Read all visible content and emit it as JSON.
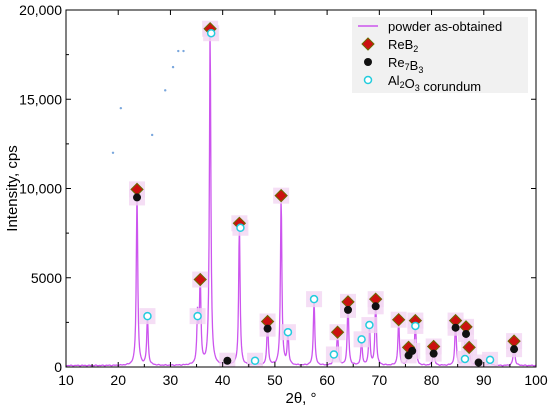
{
  "chart_data": {
    "type": "line",
    "title": "",
    "xlabel": "2θ, °",
    "ylabel": "Intensity, cps",
    "xlim": [
      10,
      100
    ],
    "ylim": [
      0,
      20000
    ],
    "x_ticks": [
      10,
      20,
      30,
      40,
      50,
      60,
      70,
      80,
      90,
      100
    ],
    "y_ticks": [
      0,
      5000,
      10000,
      15000,
      20000
    ],
    "y_tick_labels": [
      "0",
      "5000",
      "10,000",
      "15,000",
      "20,000"
    ],
    "grid": false,
    "legend_position": "top-right",
    "legend": [
      {
        "label": "powder as-obtained",
        "marker": "line",
        "color": "#cc55ee"
      },
      {
        "label_main": "ReB",
        "label_sub": "2",
        "label_tail": "",
        "marker": "diamond",
        "color": "#cc1111"
      },
      {
        "label_main": "Re",
        "label_sub": "7",
        "label_tail": "B",
        "label_sub2": "3",
        "marker": "circle",
        "color": "#111111"
      },
      {
        "label_main": "Al",
        "label_sub": "2",
        "label_tail": "O",
        "label_sub2": "3",
        "label_end": " corundum",
        "marker": "open-circle",
        "color": "#22ccdd"
      }
    ],
    "pattern": {
      "name": "powder as-obtained",
      "color": "#cc55ee",
      "baseline": 80,
      "peaks": [
        {
          "x": 23.6,
          "y": 9900
        },
        {
          "x": 25.6,
          "y": 2800
        },
        {
          "x": 35.2,
          "y": 2800
        },
        {
          "x": 35.7,
          "y": 4900
        },
        {
          "x": 37.6,
          "y": 19000
        },
        {
          "x": 40.9,
          "y": 330
        },
        {
          "x": 43.2,
          "y": 8000
        },
        {
          "x": 46.2,
          "y": 330
        },
        {
          "x": 48.6,
          "y": 2500
        },
        {
          "x": 51.2,
          "y": 9600
        },
        {
          "x": 52.5,
          "y": 1900
        },
        {
          "x": 57.5,
          "y": 3750
        },
        {
          "x": 61.3,
          "y": 700
        },
        {
          "x": 62.0,
          "y": 1900
        },
        {
          "x": 64.0,
          "y": 3600
        },
        {
          "x": 66.6,
          "y": 1500
        },
        {
          "x": 68.1,
          "y": 2300
        },
        {
          "x": 69.3,
          "y": 3750
        },
        {
          "x": 73.7,
          "y": 2600
        },
        {
          "x": 75.6,
          "y": 1100
        },
        {
          "x": 76.3,
          "y": 1000
        },
        {
          "x": 76.9,
          "y": 2550
        },
        {
          "x": 80.4,
          "y": 1100
        },
        {
          "x": 84.6,
          "y": 2550
        },
        {
          "x": 86.4,
          "y": 450
        },
        {
          "x": 86.6,
          "y": 2200
        },
        {
          "x": 87.2,
          "y": 1050
        },
        {
          "x": 89.0,
          "y": 250
        },
        {
          "x": 91.2,
          "y": 400
        },
        {
          "x": 95.8,
          "y": 1400
        }
      ]
    },
    "series": [
      {
        "name": "ReB2",
        "marker": "diamond",
        "points": [
          {
            "x": 23.6,
            "y": 9950
          },
          {
            "x": 35.7,
            "y": 4900
          },
          {
            "x": 37.6,
            "y": 18950
          },
          {
            "x": 43.2,
            "y": 8050
          },
          {
            "x": 48.6,
            "y": 2550
          },
          {
            "x": 51.2,
            "y": 9600
          },
          {
            "x": 62.0,
            "y": 1950
          },
          {
            "x": 64.0,
            "y": 3650
          },
          {
            "x": 69.3,
            "y": 3800
          },
          {
            "x": 73.7,
            "y": 2650
          },
          {
            "x": 75.6,
            "y": 1100
          },
          {
            "x": 76.9,
            "y": 2600
          },
          {
            "x": 80.4,
            "y": 1150
          },
          {
            "x": 84.6,
            "y": 2600
          },
          {
            "x": 86.6,
            "y": 2250
          },
          {
            "x": 87.2,
            "y": 1100
          },
          {
            "x": 95.8,
            "y": 1450
          }
        ]
      },
      {
        "name": "Re7B3",
        "marker": "circle",
        "points": [
          {
            "x": 23.6,
            "y": 9500
          },
          {
            "x": 40.9,
            "y": 350
          },
          {
            "x": 48.6,
            "y": 2150
          },
          {
            "x": 64.0,
            "y": 3200
          },
          {
            "x": 69.3,
            "y": 3400
          },
          {
            "x": 75.6,
            "y": 650
          },
          {
            "x": 76.3,
            "y": 900
          },
          {
            "x": 80.4,
            "y": 750
          },
          {
            "x": 84.6,
            "y": 2200
          },
          {
            "x": 86.6,
            "y": 1850
          },
          {
            "x": 89.0,
            "y": 250
          },
          {
            "x": 95.8,
            "y": 1000
          }
        ]
      },
      {
        "name": "Al2O3 corundum",
        "marker": "open-circle",
        "points": [
          {
            "x": 25.6,
            "y": 2850
          },
          {
            "x": 35.2,
            "y": 2850
          },
          {
            "x": 37.8,
            "y": 18700
          },
          {
            "x": 43.4,
            "y": 7800
          },
          {
            "x": 46.2,
            "y": 350
          },
          {
            "x": 52.5,
            "y": 1950
          },
          {
            "x": 57.5,
            "y": 3800
          },
          {
            "x": 61.3,
            "y": 700
          },
          {
            "x": 66.6,
            "y": 1550
          },
          {
            "x": 68.1,
            "y": 2350
          },
          {
            "x": 76.9,
            "y": 2300
          },
          {
            "x": 86.4,
            "y": 450
          },
          {
            "x": 91.2,
            "y": 400
          }
        ]
      }
    ],
    "faint_dotted_trace": [
      {
        "x": 26.5,
        "y": 13000
      },
      {
        "x": 29.0,
        "y": 15500
      },
      {
        "x": 30.5,
        "y": 16800
      },
      {
        "x": 31.5,
        "y": 17700
      },
      {
        "x": 32.5,
        "y": 17700
      },
      {
        "x": 20.5,
        "y": 14500
      },
      {
        "x": 19.0,
        "y": 12000
      }
    ]
  }
}
